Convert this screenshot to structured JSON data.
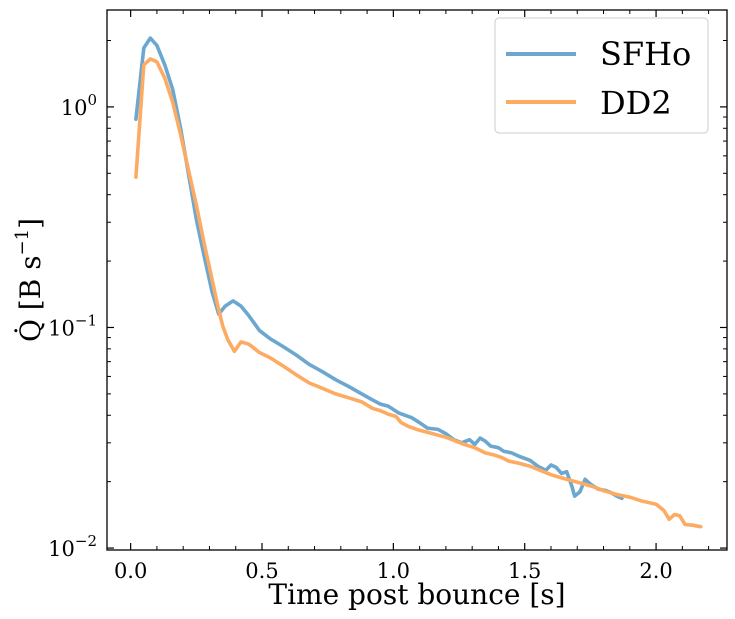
{
  "chart_data": {
    "type": "line",
    "title": "",
    "xlabel": "Time post bounce [s]",
    "ylabel": "Q̇ [B s⁻¹]",
    "ylabel_base": "Q̇ [B s",
    "ylabel_sup": "−1",
    "ylabel_end": "]",
    "xlim": [
      -0.09,
      2.27
    ],
    "ylim": [
      0.0098,
      2.75
    ],
    "yscale": "log",
    "grid": false,
    "legend_position": "top-right",
    "x_ticks": [
      {
        "value": 0.0,
        "label": "0.0"
      },
      {
        "value": 0.5,
        "label": "0.5"
      },
      {
        "value": 1.0,
        "label": "1.0"
      },
      {
        "value": 1.5,
        "label": "1.5"
      },
      {
        "value": 2.0,
        "label": "2.0"
      }
    ],
    "y_ticks": [
      {
        "value": 0.01,
        "base": "10",
        "exp": "−2"
      },
      {
        "value": 0.1,
        "base": "10",
        "exp": "−1"
      },
      {
        "value": 1,
        "base": "10",
        "exp": "0"
      }
    ],
    "series": [
      {
        "name": "SFHo",
        "color": "#6ba7cf",
        "points": [
          [
            0.02,
            0.88
          ],
          [
            0.05,
            1.85
          ],
          [
            0.075,
            2.05
          ],
          [
            0.1,
            1.9
          ],
          [
            0.13,
            1.55
          ],
          [
            0.16,
            1.2
          ],
          [
            0.19,
            0.8
          ],
          [
            0.22,
            0.5
          ],
          [
            0.25,
            0.31
          ],
          [
            0.28,
            0.21
          ],
          [
            0.31,
            0.145
          ],
          [
            0.335,
            0.115
          ],
          [
            0.36,
            0.125
          ],
          [
            0.39,
            0.132
          ],
          [
            0.42,
            0.125
          ],
          [
            0.45,
            0.113
          ],
          [
            0.49,
            0.097
          ],
          [
            0.53,
            0.089
          ],
          [
            0.58,
            0.082
          ],
          [
            0.63,
            0.075
          ],
          [
            0.68,
            0.068
          ],
          [
            0.73,
            0.063
          ],
          [
            0.78,
            0.058
          ],
          [
            0.83,
            0.054
          ],
          [
            0.88,
            0.05
          ],
          [
            0.92,
            0.047
          ],
          [
            0.95,
            0.045
          ],
          [
            0.98,
            0.044
          ],
          [
            1.02,
            0.041
          ],
          [
            1.07,
            0.039
          ],
          [
            1.1,
            0.037
          ],
          [
            1.13,
            0.035
          ],
          [
            1.17,
            0.0345
          ],
          [
            1.2,
            0.033
          ],
          [
            1.23,
            0.031
          ],
          [
            1.26,
            0.03
          ],
          [
            1.29,
            0.031
          ],
          [
            1.31,
            0.0295
          ],
          [
            1.33,
            0.0315
          ],
          [
            1.35,
            0.0305
          ],
          [
            1.37,
            0.029
          ],
          [
            1.4,
            0.0285
          ],
          [
            1.42,
            0.0275
          ],
          [
            1.45,
            0.027
          ],
          [
            1.48,
            0.026
          ],
          [
            1.52,
            0.025
          ],
          [
            1.55,
            0.0235
          ],
          [
            1.58,
            0.0225
          ],
          [
            1.6,
            0.0238
          ],
          [
            1.62,
            0.0232
          ],
          [
            1.64,
            0.0218
          ],
          [
            1.66,
            0.0222
          ],
          [
            1.68,
            0.019
          ],
          [
            1.69,
            0.0172
          ],
          [
            1.71,
            0.018
          ],
          [
            1.73,
            0.0205
          ],
          [
            1.75,
            0.0195
          ],
          [
            1.78,
            0.0185
          ],
          [
            1.81,
            0.0182
          ],
          [
            1.83,
            0.0178
          ],
          [
            1.85,
            0.0172
          ],
          [
            1.87,
            0.0168
          ]
        ]
      },
      {
        "name": "DD2",
        "color": "#fdab62",
        "points": [
          [
            0.02,
            0.48
          ],
          [
            0.05,
            1.55
          ],
          [
            0.075,
            1.65
          ],
          [
            0.1,
            1.6
          ],
          [
            0.13,
            1.35
          ],
          [
            0.16,
            1.05
          ],
          [
            0.19,
            0.75
          ],
          [
            0.22,
            0.52
          ],
          [
            0.25,
            0.36
          ],
          [
            0.28,
            0.24
          ],
          [
            0.31,
            0.165
          ],
          [
            0.33,
            0.128
          ],
          [
            0.35,
            0.102
          ],
          [
            0.37,
            0.088
          ],
          [
            0.395,
            0.078
          ],
          [
            0.42,
            0.086
          ],
          [
            0.45,
            0.084
          ],
          [
            0.49,
            0.077
          ],
          [
            0.53,
            0.073
          ],
          [
            0.58,
            0.067
          ],
          [
            0.63,
            0.061
          ],
          [
            0.68,
            0.056
          ],
          [
            0.73,
            0.053
          ],
          [
            0.78,
            0.05
          ],
          [
            0.83,
            0.048
          ],
          [
            0.88,
            0.046
          ],
          [
            0.92,
            0.043
          ],
          [
            0.95,
            0.042
          ],
          [
            0.98,
            0.0405
          ],
          [
            1.01,
            0.0395
          ],
          [
            1.03,
            0.037
          ],
          [
            1.06,
            0.0355
          ],
          [
            1.1,
            0.0342
          ],
          [
            1.13,
            0.0335
          ],
          [
            1.17,
            0.0325
          ],
          [
            1.2,
            0.0318
          ],
          [
            1.23,
            0.0308
          ],
          [
            1.27,
            0.0295
          ],
          [
            1.31,
            0.0285
          ],
          [
            1.35,
            0.027
          ],
          [
            1.38,
            0.0265
          ],
          [
            1.41,
            0.0258
          ],
          [
            1.44,
            0.0248
          ],
          [
            1.48,
            0.0242
          ],
          [
            1.52,
            0.0235
          ],
          [
            1.56,
            0.0225
          ],
          [
            1.6,
            0.0215
          ],
          [
            1.64,
            0.0208
          ],
          [
            1.68,
            0.0202
          ],
          [
            1.72,
            0.0196
          ],
          [
            1.76,
            0.019
          ],
          [
            1.8,
            0.0182
          ],
          [
            1.85,
            0.0175
          ],
          [
            1.9,
            0.017
          ],
          [
            1.95,
            0.0163
          ],
          [
            2.0,
            0.0158
          ],
          [
            2.03,
            0.0148
          ],
          [
            2.05,
            0.0135
          ],
          [
            2.07,
            0.0142
          ],
          [
            2.09,
            0.014
          ],
          [
            2.11,
            0.0128
          ],
          [
            2.14,
            0.0127
          ],
          [
            2.17,
            0.0125
          ]
        ]
      }
    ]
  }
}
